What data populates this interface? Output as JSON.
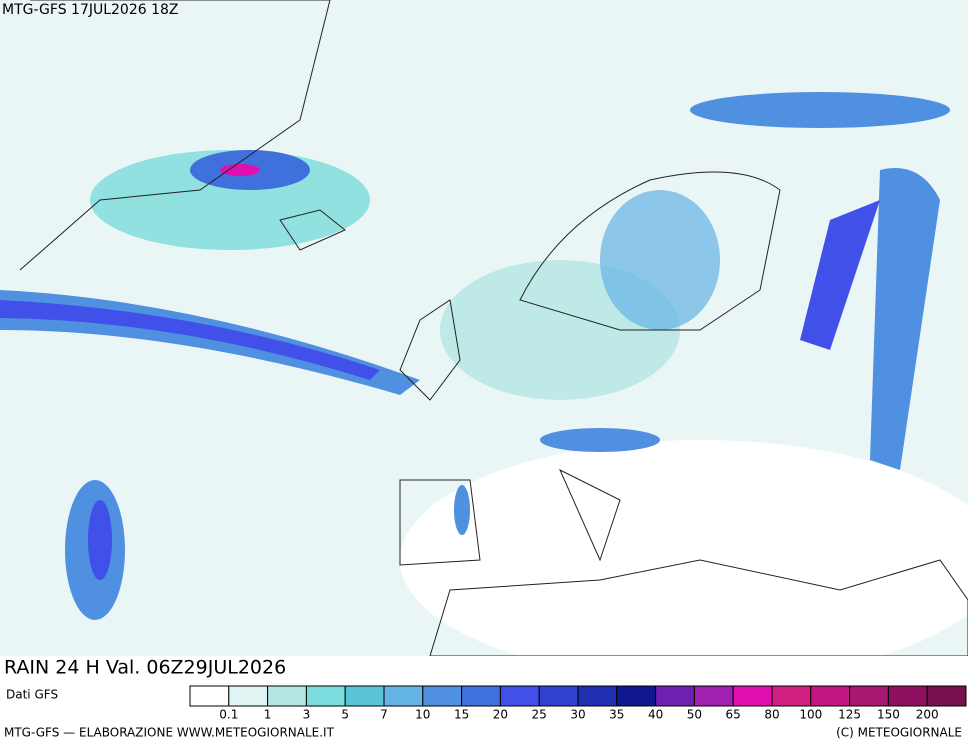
{
  "header": {
    "run": "MTG-GFS 17JUL2026 18Z"
  },
  "title": "RAIN 24 H Val. 06Z29JUL2026",
  "source": "Dati GFS",
  "legend": {
    "colors": [
      "#ffffff",
      "#e0f4f4",
      "#b4e6e4",
      "#7adcdc",
      "#5cc4d8",
      "#64b4e6",
      "#5090e0",
      "#4070dc",
      "#4050e8",
      "#3040d0",
      "#2030b0",
      "#101890",
      "#7020b0",
      "#a020b0",
      "#e010b0",
      "#d02080",
      "#c01880",
      "#a81870",
      "#901060",
      "#781050"
    ],
    "labels": [
      "0.1",
      "1",
      "3",
      "5",
      "7",
      "10",
      "15",
      "20",
      "25",
      "30",
      "35",
      "40",
      "50",
      "65",
      "80",
      "100",
      "125",
      "150",
      "200"
    ]
  },
  "footer": {
    "left": "MTG-GFS — ELABORAZIONE WWW.METEOGIORNALE.IT",
    "right": "(C) METEOGIORNALE"
  }
}
